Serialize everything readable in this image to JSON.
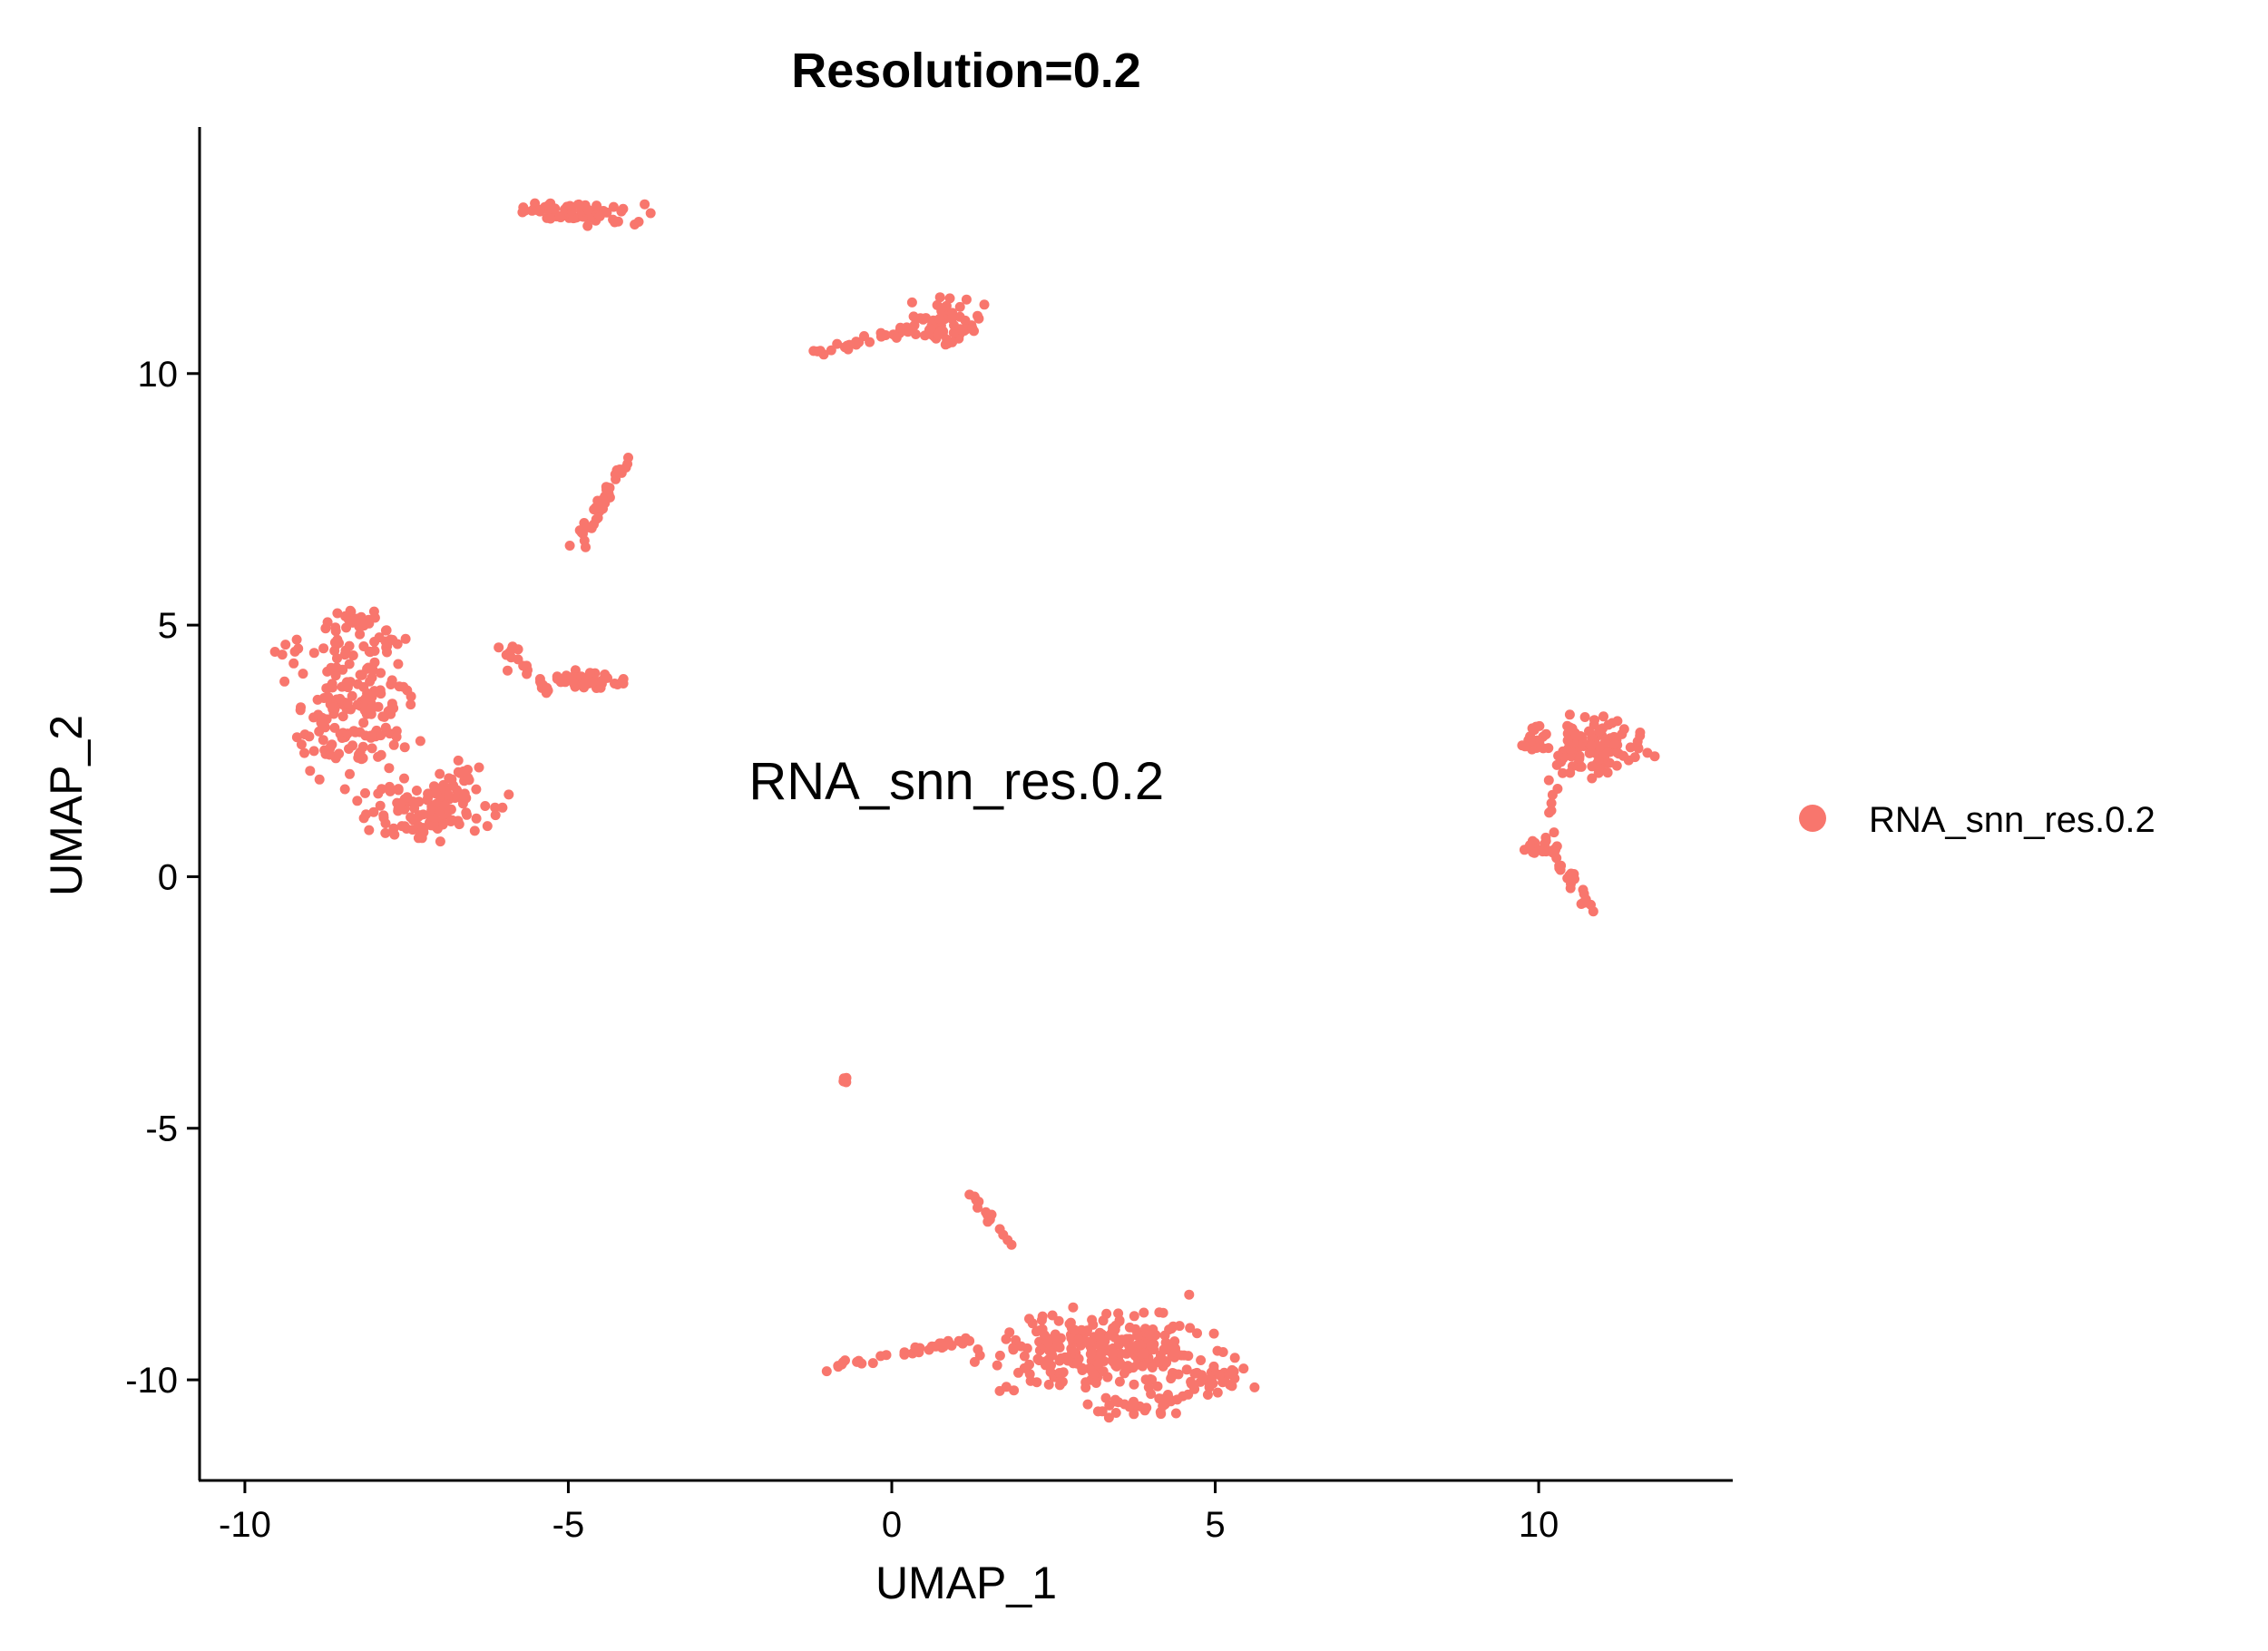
{
  "chart_data": {
    "type": "scatter",
    "title": "Resolution=0.2",
    "xlabel": "UMAP_1",
    "ylabel": "UMAP_2",
    "xlim": [
      -10.7,
      13.0
    ],
    "ylim": [
      -12.0,
      14.9
    ],
    "x_ticks": [
      -10,
      -5,
      0,
      5,
      10
    ],
    "y_ticks": [
      -10,
      -5,
      0,
      5,
      10
    ],
    "x_tick_labels": [
      "-10",
      "-5",
      "0",
      "5",
      "10"
    ],
    "y_tick_labels": [
      "-10",
      "-5",
      "0",
      "5",
      "10"
    ],
    "grid": false,
    "legend_position": "right",
    "point_color": "#F8766D",
    "cluster_label": {
      "text": "RNA_snn_res.0.2",
      "x": 1.0,
      "y": 1.9
    },
    "series": [
      {
        "name": "RNA_snn_res.0.2",
        "color": "#F8766D",
        "clusters": [
          {
            "center": [
              -5.0,
              13.2
            ],
            "spread": [
              0.8,
              0.18
            ],
            "n": 70
          },
          {
            "center": [
              0.8,
              11.0
            ],
            "spread": [
              0.45,
              0.35
            ],
            "n": 70
          },
          {
            "line": [
              [
                -1.3,
                10.4
              ],
              [
                0.3,
                10.9
              ]
            ],
            "jitter": 0.1,
            "n": 25
          },
          {
            "line": [
              [
                -4.9,
                6.5
              ],
              [
                -4.1,
                8.3
              ]
            ],
            "jitter": 0.12,
            "n": 40
          },
          {
            "center": [
              -8.3,
              3.3
            ],
            "spread": [
              0.7,
              1.0
            ],
            "n": 160
          },
          {
            "center": [
              -7.2,
              1.3
            ],
            "spread": [
              0.8,
              0.5
            ],
            "n": 120
          },
          {
            "line": [
              [
                -9.6,
                4.4
              ],
              [
                -7.5,
                4.8
              ]
            ],
            "jitter": 0.25,
            "n": 30
          },
          {
            "center": [
              -8.3,
              5.1
            ],
            "spread": [
              0.4,
              0.2
            ],
            "n": 25
          },
          {
            "center": [
              -4.7,
              3.9
            ],
            "spread": [
              0.45,
              0.15
            ],
            "n": 50
          },
          {
            "line": [
              [
                -6.0,
                4.6
              ],
              [
                -5.3,
                3.6
              ]
            ],
            "jitter": 0.15,
            "n": 22
          },
          {
            "center": [
              -6.6,
              2.0
            ],
            "spread": [
              0.35,
              0.3
            ],
            "n": 15
          },
          {
            "center": [
              10.9,
              2.6
            ],
            "spread": [
              0.55,
              0.5
            ],
            "n": 110
          },
          {
            "center": [
              9.9,
              2.7
            ],
            "spread": [
              0.2,
              0.3
            ],
            "n": 20
          },
          {
            "center": [
              10.0,
              0.6
            ],
            "spread": [
              0.3,
              0.2
            ],
            "n": 25
          },
          {
            "line": [
              [
                10.3,
                0.3
              ],
              [
                10.8,
                -0.6
              ]
            ],
            "jitter": 0.1,
            "n": 20
          },
          {
            "line": [
              [
                10.2,
                1.2
              ],
              [
                10.4,
                2.4
              ]
            ],
            "jitter": 0.08,
            "n": 10
          },
          {
            "center": [
              -0.7,
              -4.05
            ],
            "spread": [
              0.06,
              0.05
            ],
            "n": 5
          },
          {
            "line": [
              [
                1.2,
                -6.3
              ],
              [
                1.9,
                -7.4
              ]
            ],
            "jitter": 0.08,
            "n": 14
          },
          {
            "line": [
              [
                -1.1,
                -9.8
              ],
              [
                1.2,
                -9.2
              ]
            ],
            "jitter": 0.08,
            "n": 35
          },
          {
            "center": [
              3.3,
              -9.4
            ],
            "spread": [
              1.3,
              0.6
            ],
            "n": 260
          },
          {
            "center": [
              4.9,
              -10.0
            ],
            "spread": [
              0.6,
              0.35
            ],
            "n": 40
          },
          {
            "center": [
              3.8,
              -10.5
            ],
            "spread": [
              0.6,
              0.2
            ],
            "n": 30
          }
        ]
      }
    ]
  }
}
